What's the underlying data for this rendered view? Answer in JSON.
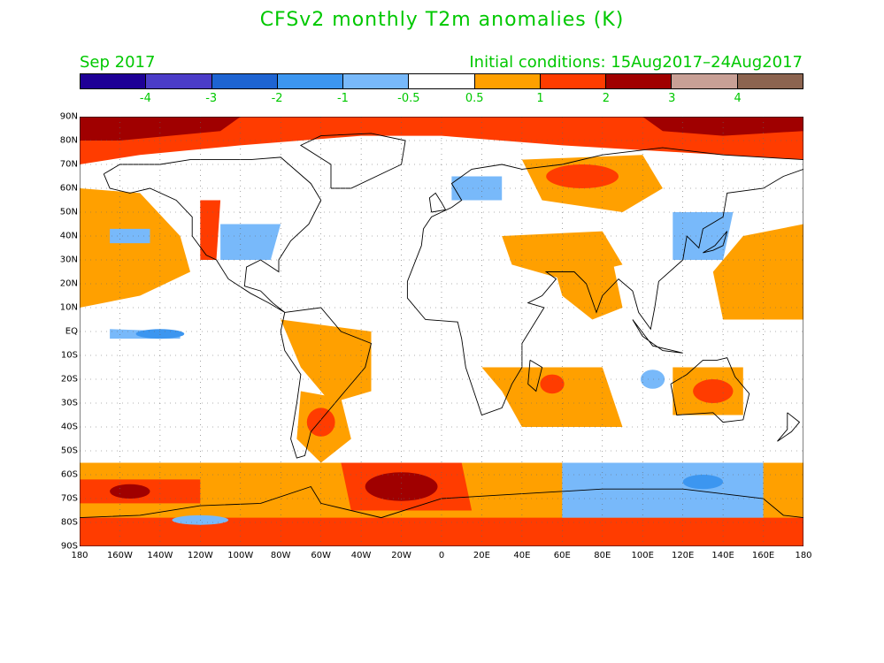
{
  "title": "CFSv2 monthly T2m anomalies (K)",
  "valid_month": "Sep 2017",
  "initial_conditions": "Initial conditions: 15Aug2017–24Aug2017",
  "colorbar": {
    "colors": [
      "#1e0096",
      "#4b3cc8",
      "#1e64d2",
      "#3c96f0",
      "#78b9fa",
      "#ffffff",
      "#ffa000",
      "#ff3c00",
      "#a00000",
      "#c8a096",
      "#8c6450"
    ],
    "labels": [
      "-4",
      "-3",
      "-2",
      "-1",
      "-0.5",
      "0.5",
      "1",
      "2",
      "3",
      "4"
    ]
  },
  "axes": {
    "lat_labels": [
      "90N",
      "80N",
      "70N",
      "60N",
      "50N",
      "40N",
      "30N",
      "20N",
      "10N",
      "EQ",
      "10S",
      "20S",
      "30S",
      "40S",
      "50S",
      "60S",
      "70S",
      "80S",
      "90S"
    ],
    "lon_labels": [
      "180",
      "160W",
      "140W",
      "120W",
      "100W",
      "80W",
      "60W",
      "40W",
      "20W",
      "0",
      "20E",
      "40E",
      "60E",
      "80E",
      "100E",
      "120E",
      "140E",
      "160E",
      "180"
    ],
    "lat_range": [
      -90,
      90
    ],
    "lon_range": [
      -180,
      180
    ]
  },
  "map_colors": {
    "orange": "#ffa000",
    "red": "#ff3c00",
    "darkred": "#a00000",
    "blue": "#78b9fa",
    "midblue": "#3c96f0",
    "deepblue": "#1e64d2"
  }
}
